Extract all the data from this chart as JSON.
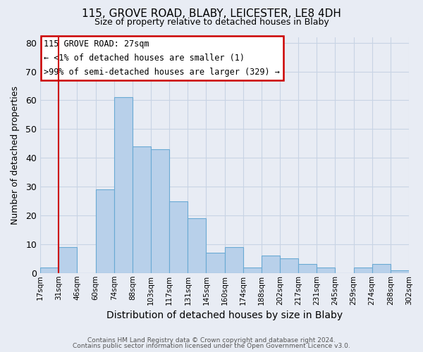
{
  "title": "115, GROVE ROAD, BLABY, LEICESTER, LE8 4DH",
  "subtitle": "Size of property relative to detached houses in Blaby",
  "xlabel": "Distribution of detached houses by size in Blaby",
  "ylabel": "Number of detached properties",
  "footer_lines": [
    "Contains HM Land Registry data © Crown copyright and database right 2024.",
    "Contains public sector information licensed under the Open Government Licence v3.0."
  ],
  "bin_labels": [
    "17sqm",
    "31sqm",
    "46sqm",
    "60sqm",
    "74sqm",
    "88sqm",
    "103sqm",
    "117sqm",
    "131sqm",
    "145sqm",
    "160sqm",
    "174sqm",
    "188sqm",
    "202sqm",
    "217sqm",
    "231sqm",
    "245sqm",
    "259sqm",
    "274sqm",
    "288sqm",
    "302sqm"
  ],
  "bar_heights": [
    2,
    9,
    0,
    29,
    61,
    44,
    43,
    25,
    19,
    7,
    9,
    2,
    6,
    5,
    3,
    2,
    0,
    2,
    3,
    1
  ],
  "bar_color": "#b8d0ea",
  "bar_edge_color": "#6aaad4",
  "annotation_line1": "115 GROVE ROAD: 27sqm",
  "annotation_line2": "← <1% of detached houses are smaller (1)",
  "annotation_line3": ">99% of semi-detached houses are larger (329) →",
  "annotation_box_color": "#ffffff",
  "annotation_box_edge_color": "#cc0000",
  "vline_color": "#cc0000",
  "vline_x": 1.0,
  "ylim": [
    0,
    82
  ],
  "yticks": [
    0,
    10,
    20,
    30,
    40,
    50,
    60,
    70,
    80
  ],
  "grid_color": "#c8d4e4",
  "background_color": "#e8ecf4",
  "title_fontsize": 11,
  "subtitle_fontsize": 9
}
